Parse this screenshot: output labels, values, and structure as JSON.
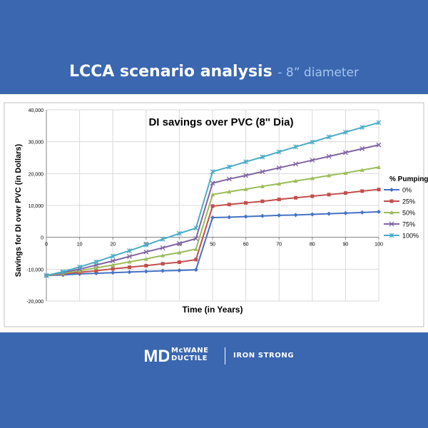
{
  "header": {
    "title": "LCCA scenario analysis",
    "subtitle": "- 8” diameter"
  },
  "brand": {
    "line1": "McWANE",
    "line2": "DUCTILE",
    "tagline": "IRON STRONG",
    "logo_letters": "MD"
  },
  "colors": {
    "banner": "#3a67b0",
    "subtitle": "#a7c5ec"
  },
  "chart_data": {
    "type": "line",
    "title": "DI savings over PVC (8'' Dia)",
    "xlabel": "Time (in Years)",
    "ylabel": "Savings for DI over PVC (in Dollars)",
    "xlim": [
      0,
      100
    ],
    "ylim": [
      -20000,
      40000
    ],
    "x_ticks": [
      "0",
      "10",
      "20",
      "30",
      "40",
      "50",
      "60",
      "70",
      "80",
      "90",
      "100"
    ],
    "y_ticks": [
      "40,000",
      "30,000",
      "20,000",
      "10,000",
      "0",
      "-10,000",
      "-20,000"
    ],
    "grid": true,
    "legend_title": "% Pumping",
    "legend_position": "right",
    "x": [
      0,
      5,
      10,
      15,
      20,
      25,
      30,
      35,
      40,
      45,
      50,
      55,
      60,
      65,
      70,
      75,
      80,
      85,
      90,
      95,
      100
    ],
    "series": [
      {
        "name": "0%",
        "color": "#4472c4",
        "marker": "diamond",
        "values": [
          -12000,
          -11800,
          -11500,
          -11300,
          -11100,
          -10900,
          -10700,
          -10500,
          -10400,
          -10200,
          6200,
          6300,
          6500,
          6700,
          6900,
          7000,
          7200,
          7400,
          7600,
          7800,
          8000
        ]
      },
      {
        "name": "25%",
        "color": "#c0504d",
        "marker": "square",
        "values": [
          -12000,
          -11500,
          -11000,
          -10500,
          -9900,
          -9400,
          -8900,
          -8300,
          -7800,
          -7000,
          9800,
          10300,
          10800,
          11300,
          11900,
          12400,
          12900,
          13400,
          13900,
          14500,
          15000
        ]
      },
      {
        "name": "50%",
        "color": "#9bbb59",
        "marker": "triangle",
        "values": [
          -12000,
          -11300,
          -10500,
          -9600,
          -8700,
          -7700,
          -6800,
          -5700,
          -4800,
          -3700,
          13400,
          14300,
          15100,
          16000,
          16800,
          17700,
          18500,
          19400,
          20200,
          21100,
          22000
        ]
      },
      {
        "name": "75%",
        "color": "#8064a2",
        "marker": "x",
        "values": [
          -12000,
          -11000,
          -10000,
          -8700,
          -7400,
          -6000,
          -4600,
          -3300,
          -1900,
          -400,
          17000,
          18300,
          19400,
          20600,
          21800,
          23000,
          24200,
          25400,
          26600,
          27800,
          29000
        ]
      },
      {
        "name": "100%",
        "color": "#4bacc6",
        "marker": "star",
        "values": [
          -12000,
          -10800,
          -9300,
          -7700,
          -5900,
          -4200,
          -2400,
          -600,
          1200,
          2900,
          20600,
          22100,
          23700,
          25200,
          26800,
          28400,
          29900,
          31500,
          33000,
          34500,
          36000
        ]
      }
    ]
  }
}
